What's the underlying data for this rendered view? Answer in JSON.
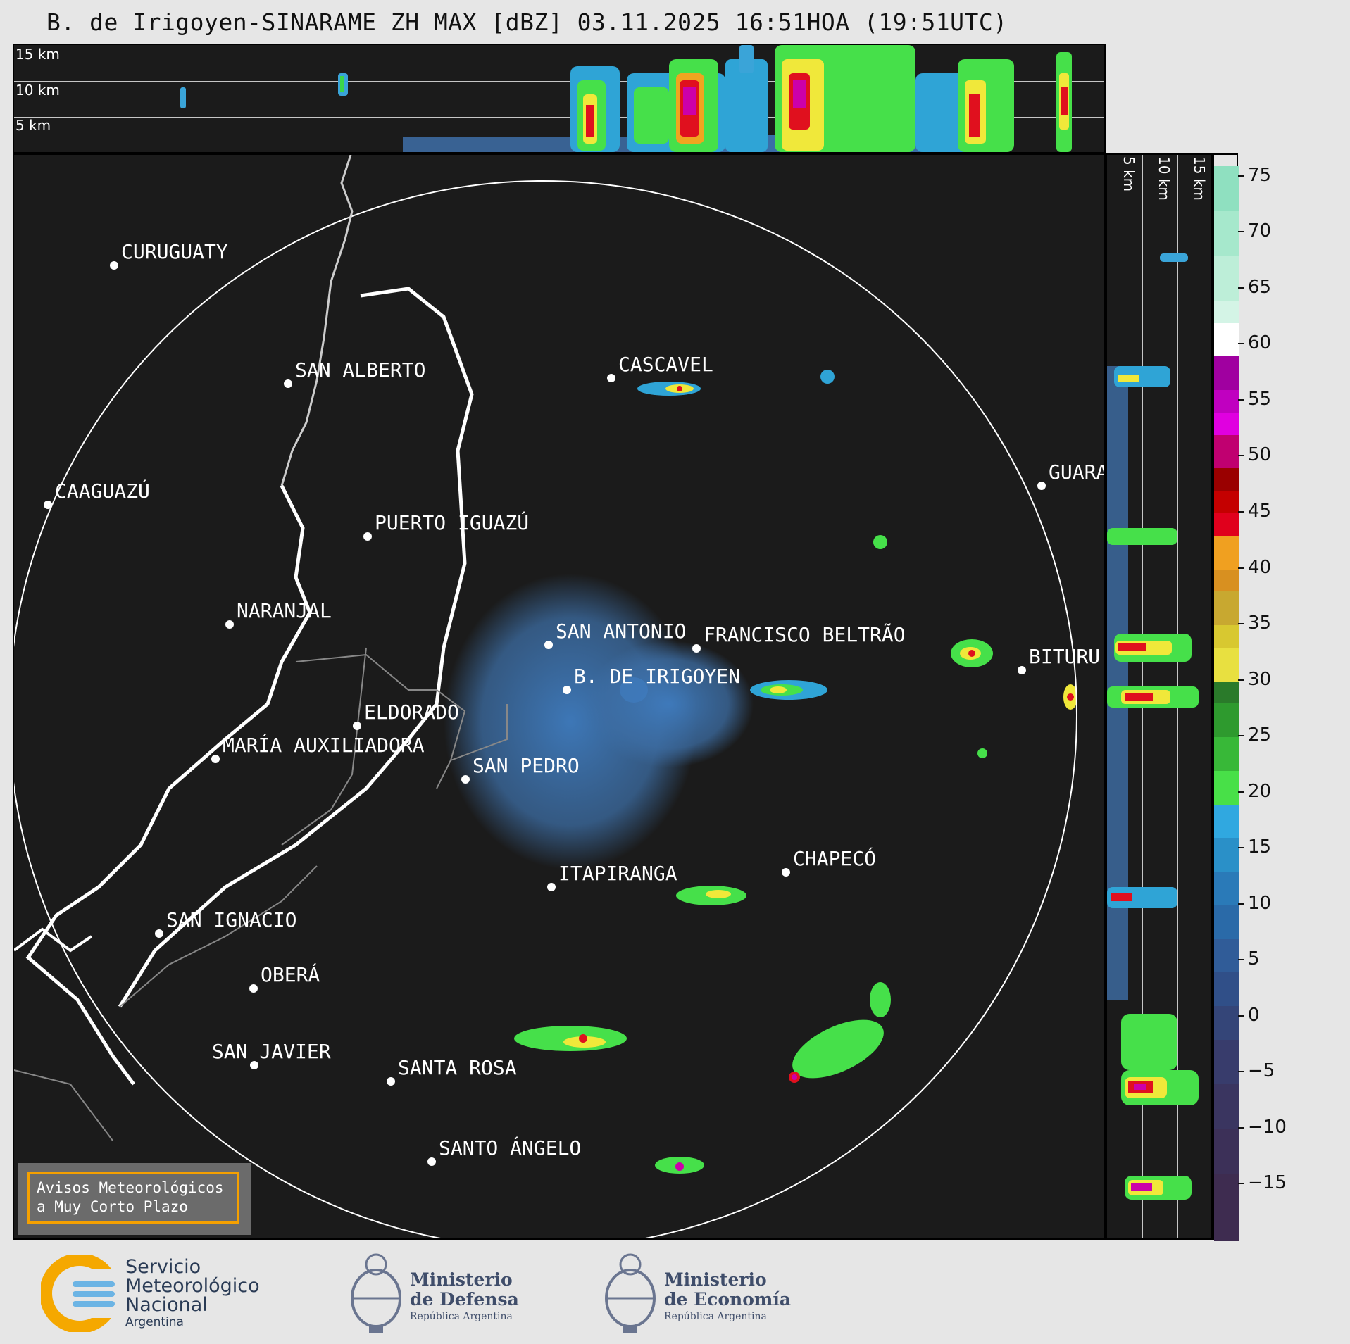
{
  "title": "B. de Irigoyen-SINARAME ZH MAX [dBZ] 03.11.2025 16:51HOA (19:51UTC)",
  "top_view": {
    "altitude_labels": [
      "15 km",
      "10 km",
      "5 km"
    ]
  },
  "side_view": {
    "altitude_labels": [
      "5 km",
      "10 km",
      "15 km"
    ]
  },
  "colorbar": {
    "unit": "dBZ",
    "ticks": [
      "75",
      "70",
      "65",
      "60",
      "55",
      "50",
      "45",
      "40",
      "35",
      "30",
      "25",
      "20",
      "15",
      "10",
      "5",
      "0",
      "−5",
      "−10",
      "−15"
    ],
    "range": [
      -20,
      77
    ]
  },
  "cities": [
    {
      "name": "CURUGUATY"
    },
    {
      "name": "SAN ALBERTO"
    },
    {
      "name": "CASCAVEL"
    },
    {
      "name": "CAAGUAZÚ"
    },
    {
      "name": "GUARA"
    },
    {
      "name": "PUERTO IGUAZÚ"
    },
    {
      "name": "NARANJAL"
    },
    {
      "name": "SAN ANTONIO"
    },
    {
      "name": "FRANCISCO BELTRÃO"
    },
    {
      "name": "BITURU"
    },
    {
      "name": "B. DE IRIGOYEN"
    },
    {
      "name": "ELDORADO"
    },
    {
      "name": "MARÍA AUXILIADORA"
    },
    {
      "name": "SAN PEDRO"
    },
    {
      "name": "CHAPECÓ"
    },
    {
      "name": "ITAPIRANGA"
    },
    {
      "name": "SAN IGNACIO"
    },
    {
      "name": "OBERÁ"
    },
    {
      "name": "SAN JAVIER"
    },
    {
      "name": "SANTA ROSA"
    },
    {
      "name": "SANTO ÁNGELO"
    }
  ],
  "warning_box": {
    "line1": "Avisos Meteorológicos",
    "line2": "a Muy Corto Plazo"
  },
  "logos": {
    "smn": {
      "line1": "Servicio",
      "line2": "Meteorológico",
      "line3": "Nacional",
      "line4": "Argentina"
    },
    "defensa": {
      "line1": "Ministerio",
      "line2": "de Defensa",
      "line3": "República Argentina"
    },
    "economia": {
      "line1": "Ministerio",
      "line2": "de Economía",
      "line3": "República Argentina"
    }
  },
  "colors": {
    "background": "#1b1b1b",
    "outline": "#ffffff",
    "accent_border": "#f5a000"
  }
}
